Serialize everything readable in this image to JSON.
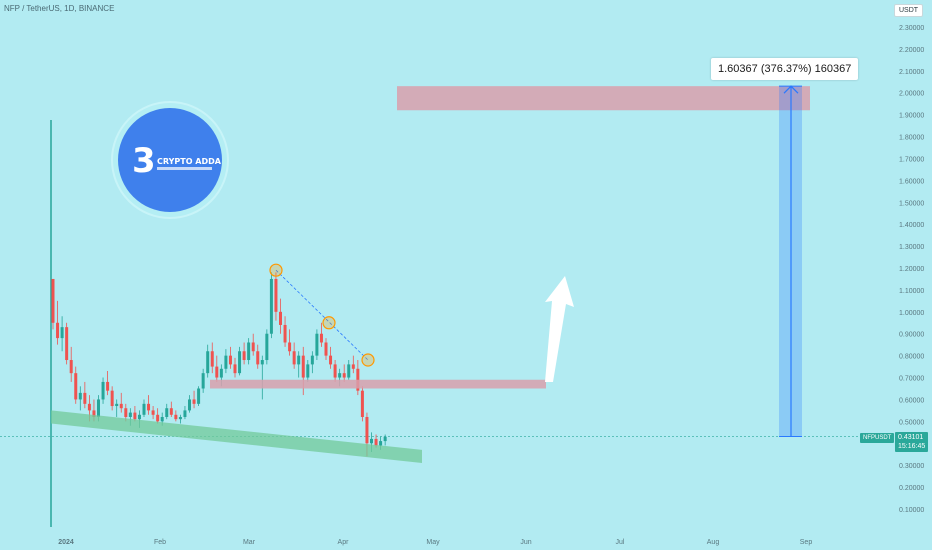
{
  "header": {
    "symbol_title": "NFP / TetherUS, 1D, BINANCE",
    "currency": "USDT"
  },
  "logo": {
    "text": "CRYPTO ADDA"
  },
  "measure": {
    "label": "1.60367 (376.37%) 160367"
  },
  "price_tag": {
    "symbol": "NFPUSDT",
    "price": "0.43101",
    "countdown": "15:16:45"
  },
  "colors": {
    "background": "#b2ebf2",
    "bull": "#26a69a",
    "bear": "#ef5350",
    "zone": "#d8a0ad",
    "channel": "#72c99a",
    "measure": "#2979ff",
    "logo_circle": "#3f80ec",
    "pivot": "#ff9800"
  },
  "chart_data": {
    "type": "candlestick",
    "title": "NFP / TetherUS, 1D, BINANCE",
    "xlabel": "",
    "ylabel": "USDT",
    "ylim": [
      0.0,
      2.4
    ],
    "yticks": [
      "0.10000",
      "0.20000",
      "0.30000",
      "0.40000",
      "0.50000",
      "0.60000",
      "0.70000",
      "0.80000",
      "0.90000",
      "1.00000",
      "1.10000",
      "1.20000",
      "1.30000",
      "1.40000",
      "1.50000",
      "1.60000",
      "1.70000",
      "1.80000",
      "1.90000",
      "2.00000",
      "2.10000",
      "2.20000",
      "2.30000"
    ],
    "xticks": [
      "2024",
      "Feb",
      "Mar",
      "Apr",
      "May",
      "Jun",
      "Jul",
      "Aug",
      "Sep"
    ],
    "series": [
      {
        "values": [
          [
            1.15,
            1.15,
            0.92,
            0.95
          ],
          [
            0.95,
            1.05,
            0.85,
            0.88
          ],
          [
            0.88,
            0.98,
            0.82,
            0.93
          ],
          [
            0.93,
            0.95,
            0.76,
            0.78
          ],
          [
            0.78,
            0.84,
            0.68,
            0.72
          ],
          [
            0.72,
            0.75,
            0.58,
            0.6
          ],
          [
            0.6,
            0.66,
            0.55,
            0.63
          ],
          [
            0.63,
            0.68,
            0.56,
            0.58
          ],
          [
            0.58,
            0.62,
            0.5,
            0.55
          ],
          [
            0.55,
            0.6,
            0.5,
            0.52
          ],
          [
            0.52,
            0.62,
            0.5,
            0.6
          ],
          [
            0.6,
            0.7,
            0.58,
            0.68
          ],
          [
            0.68,
            0.73,
            0.62,
            0.64
          ],
          [
            0.64,
            0.66,
            0.55,
            0.57
          ],
          [
            0.57,
            0.6,
            0.52,
            0.58
          ],
          [
            0.58,
            0.63,
            0.54,
            0.56
          ],
          [
            0.56,
            0.58,
            0.5,
            0.52
          ],
          [
            0.52,
            0.56,
            0.48,
            0.54
          ],
          [
            0.54,
            0.57,
            0.5,
            0.51
          ],
          [
            0.51,
            0.55,
            0.47,
            0.53
          ],
          [
            0.53,
            0.6,
            0.52,
            0.58
          ],
          [
            0.58,
            0.62,
            0.53,
            0.55
          ],
          [
            0.55,
            0.57,
            0.51,
            0.53
          ],
          [
            0.53,
            0.56,
            0.49,
            0.5
          ],
          [
            0.5,
            0.54,
            0.48,
            0.52
          ],
          [
            0.52,
            0.58,
            0.51,
            0.56
          ],
          [
            0.56,
            0.59,
            0.52,
            0.53
          ],
          [
            0.53,
            0.55,
            0.5,
            0.51
          ],
          [
            0.51,
            0.53,
            0.49,
            0.52
          ],
          [
            0.52,
            0.57,
            0.51,
            0.55
          ],
          [
            0.55,
            0.62,
            0.54,
            0.6
          ],
          [
            0.6,
            0.64,
            0.56,
            0.58
          ],
          [
            0.58,
            0.66,
            0.57,
            0.65
          ],
          [
            0.65,
            0.74,
            0.63,
            0.72
          ],
          [
            0.72,
            0.85,
            0.7,
            0.82
          ],
          [
            0.82,
            0.86,
            0.72,
            0.75
          ],
          [
            0.75,
            0.8,
            0.68,
            0.7
          ],
          [
            0.7,
            0.76,
            0.66,
            0.74
          ],
          [
            0.74,
            0.83,
            0.72,
            0.8
          ],
          [
            0.8,
            0.84,
            0.74,
            0.76
          ],
          [
            0.76,
            0.79,
            0.7,
            0.72
          ],
          [
            0.72,
            0.84,
            0.71,
            0.82
          ],
          [
            0.82,
            0.86,
            0.76,
            0.78
          ],
          [
            0.78,
            0.88,
            0.76,
            0.86
          ],
          [
            0.86,
            0.9,
            0.8,
            0.82
          ],
          [
            0.82,
            0.85,
            0.74,
            0.76
          ],
          [
            0.76,
            0.8,
            0.6,
            0.78
          ],
          [
            0.78,
            0.92,
            0.76,
            0.9
          ],
          [
            0.9,
            1.18,
            0.88,
            1.15
          ],
          [
            1.15,
            1.18,
            0.96,
            1.0
          ],
          [
            1.0,
            1.06,
            0.9,
            0.94
          ],
          [
            0.94,
            0.98,
            0.84,
            0.86
          ],
          [
            0.86,
            0.92,
            0.8,
            0.82
          ],
          [
            0.82,
            0.86,
            0.74,
            0.76
          ],
          [
            0.76,
            0.82,
            0.7,
            0.8
          ],
          [
            0.8,
            0.84,
            0.62,
            0.7
          ],
          [
            0.7,
            0.78,
            0.68,
            0.76
          ],
          [
            0.76,
            0.82,
            0.72,
            0.8
          ],
          [
            0.8,
            0.92,
            0.78,
            0.9
          ],
          [
            0.9,
            0.95,
            0.84,
            0.86
          ],
          [
            0.86,
            0.88,
            0.78,
            0.8
          ],
          [
            0.8,
            0.84,
            0.74,
            0.76
          ],
          [
            0.76,
            0.78,
            0.68,
            0.7
          ],
          [
            0.7,
            0.74,
            0.66,
            0.72
          ],
          [
            0.72,
            0.76,
            0.68,
            0.7
          ],
          [
            0.7,
            0.78,
            0.69,
            0.76
          ],
          [
            0.76,
            0.8,
            0.72,
            0.74
          ],
          [
            0.74,
            0.78,
            0.62,
            0.64
          ],
          [
            0.64,
            0.66,
            0.5,
            0.52
          ],
          [
            0.52,
            0.54,
            0.34,
            0.4
          ],
          [
            0.4,
            0.45,
            0.36,
            0.42
          ],
          [
            0.42,
            0.44,
            0.38,
            0.39
          ],
          [
            0.39,
            0.43,
            0.37,
            0.41
          ],
          [
            0.41,
            0.44,
            0.39,
            0.43
          ]
        ]
      }
    ],
    "current_price": 0.43101
  }
}
